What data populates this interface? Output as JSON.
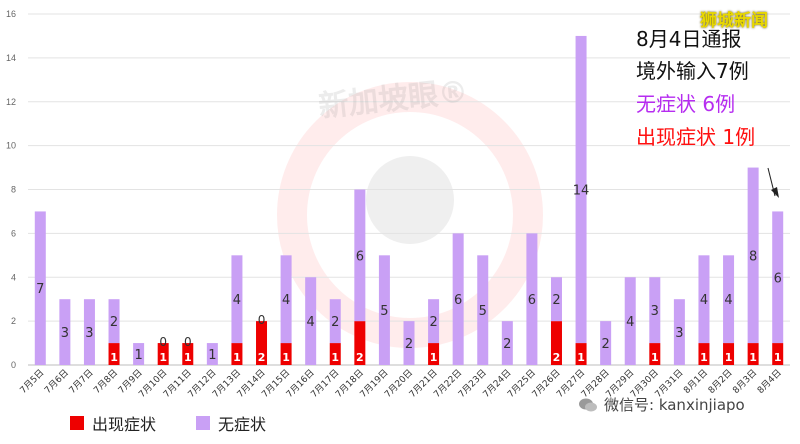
{
  "watermark": "新加坡眼®",
  "source_logo": "狮城新闻",
  "annotation": {
    "line1": "8月4日通报",
    "line2": "境外输入7例",
    "line3": "无症状 6例",
    "line4": "出现症状 1例"
  },
  "wechat": "微信号: kanxinjiapo",
  "colors": {
    "symptomatic": "#ee0000",
    "asymptomatic": "#c9a0f5",
    "grid": "#e3e3e3"
  },
  "chart_data": {
    "type": "bar",
    "stacked": true,
    "categories": [
      "7月5日",
      "7月6日",
      "7月7日",
      "7月8日",
      "7月9日",
      "7月10日",
      "7月11日",
      "7月12日",
      "7月13日",
      "7月14日",
      "7月15日",
      "7月16日",
      "7月17日",
      "7月18日",
      "7月19日",
      "7月20日",
      "7月21日",
      "7月22日",
      "7月23日",
      "7月24日",
      "7月25日",
      "7月26日",
      "7月27日",
      "7月28日",
      "7月29日",
      "7月30日",
      "7月31日",
      "8月1日",
      "8月2日",
      "8月3日",
      "8月4日"
    ],
    "series": [
      {
        "name": "出现症状",
        "color": "#ee0000",
        "values": [
          0,
          0,
          0,
          1,
          0,
          1,
          1,
          0,
          1,
          2,
          1,
          0,
          1,
          2,
          0,
          0,
          1,
          0,
          0,
          0,
          0,
          2,
          1,
          0,
          0,
          1,
          0,
          1,
          1,
          1,
          1
        ],
        "labels": [
          "",
          "",
          "",
          "1",
          "",
          "1",
          "1",
          "",
          "1",
          "2",
          "1",
          "",
          "1",
          "2",
          "",
          "",
          "1",
          "",
          "",
          "",
          "",
          "2",
          "1",
          "",
          "",
          "1",
          "",
          "1",
          "1",
          "1",
          "1"
        ]
      },
      {
        "name": "无症状",
        "color": "#c9a0f5",
        "values": [
          7,
          3,
          3,
          2,
          1,
          0,
          0,
          1,
          4,
          0,
          4,
          4,
          2,
          6,
          5,
          2,
          2,
          6,
          5,
          2,
          6,
          2,
          14,
          2,
          4,
          3,
          3,
          4,
          4,
          8,
          6
        ],
        "labels": [
          "7",
          "3",
          "3",
          "2",
          "1",
          "0",
          "0",
          "1",
          "4",
          "0",
          "4",
          "4",
          "2",
          "6",
          "5",
          "2",
          "2",
          "6",
          "5",
          "2",
          "6",
          "2",
          "14",
          "2",
          "4",
          "3",
          "3",
          "4",
          "4",
          "8",
          "6"
        ]
      }
    ],
    "legend": [
      "出现症状",
      "无症状"
    ],
    "legend_position": "bottom-left",
    "ylim": [
      0,
      16
    ],
    "yticks": [
      0,
      2,
      4,
      6,
      8,
      10,
      12,
      14,
      16
    ],
    "grid": true,
    "title": "",
    "xlabel": "",
    "ylabel": ""
  }
}
